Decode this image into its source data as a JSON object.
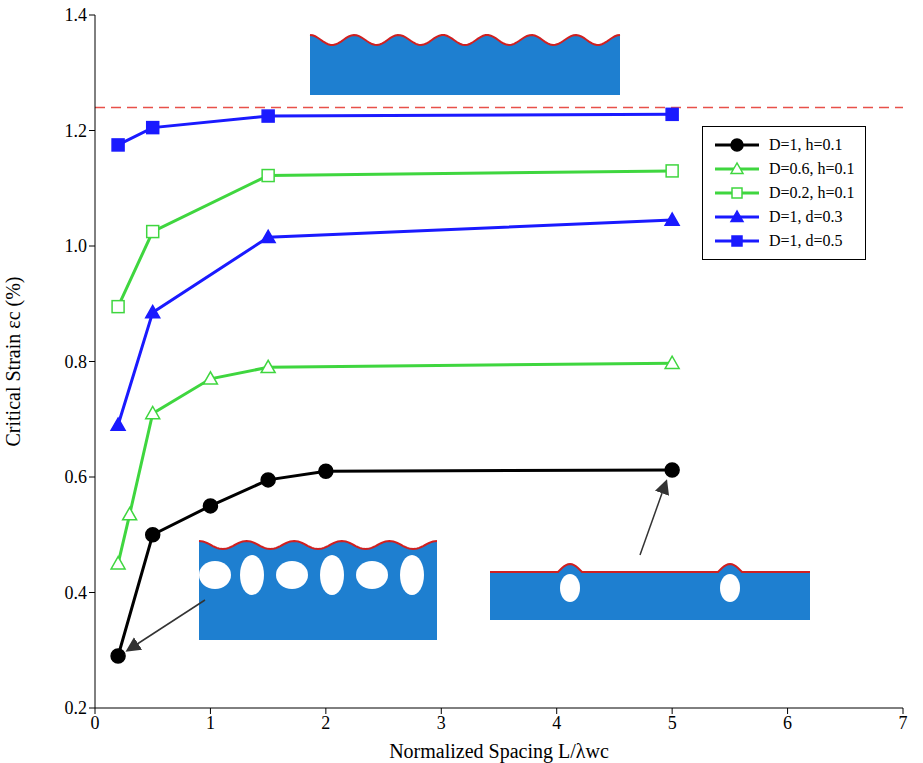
{
  "chart_data": {
    "type": "line",
    "x_label": "Normalized Spacing L/λwc",
    "y_label": "Critical Strain εc (%)",
    "xlim": [
      0,
      7
    ],
    "xticks": [
      0,
      1,
      2,
      3,
      4,
      5,
      6,
      7
    ],
    "ylim": [
      0.2,
      1.4
    ],
    "yticks": [
      0.2,
      0.4,
      0.6,
      0.8,
      {
        "value": 1,
        "label": "1.0"
      },
      1.2,
      1.4
    ],
    "grid": false,
    "legend": "upper right",
    "reference_line": {
      "value": 1.24,
      "color": "#e8504a",
      "line_style": "dashed"
    },
    "series": [
      {
        "name": "D=1, h=0.1",
        "color": "#000000",
        "marker": "circle",
        "x": [
          0.2,
          0.5,
          1,
          1.5,
          2,
          5
        ],
        "values": [
          0.29,
          0.5,
          0.55,
          0.595,
          0.61,
          0.612
        ]
      },
      {
        "name": "D=0.6, h=0.1",
        "color": "#3fd63f",
        "marker": "triangle-open",
        "x": [
          0.2,
          0.3,
          0.5,
          1,
          1.5,
          5
        ],
        "values": [
          0.45,
          0.535,
          0.71,
          0.77,
          0.79,
          0.797
        ]
      },
      {
        "name": "D=0.2, h=0.1",
        "color": "#3fd63f",
        "marker": "square-open",
        "x": [
          0.2,
          0.5,
          1.5,
          5
        ],
        "values": [
          0.895,
          1.025,
          1.122,
          1.13
        ]
      },
      {
        "name": "D=1, d=0.3",
        "color": "#1a1aff",
        "marker": "triangle",
        "x": [
          0.2,
          0.5,
          1.5,
          5
        ],
        "values": [
          0.69,
          0.885,
          1.015,
          1.045
        ]
      },
      {
        "name": "D=1, d=0.5",
        "color": "#1a1aff",
        "marker": "square",
        "x": [
          0.2,
          0.5,
          1.5,
          5
        ],
        "values": [
          1.175,
          1.205,
          1.225,
          1.228
        ]
      }
    ]
  }
}
